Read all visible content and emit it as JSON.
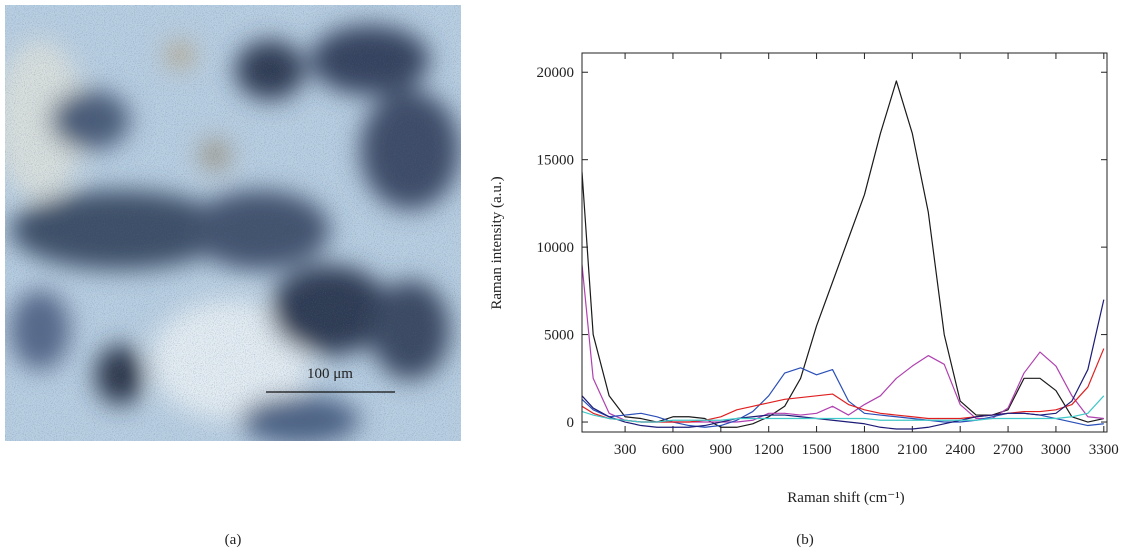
{
  "chart_data": {
    "type": "line",
    "xlabel": "Raman shift (cm⁻¹)",
    "ylabel": "Raman intensity (a.u.)",
    "x": [
      30,
      100,
      200,
      300,
      400,
      500,
      600,
      700,
      800,
      900,
      1000,
      1100,
      1200,
      1300,
      1400,
      1500,
      1600,
      1700,
      1800,
      1900,
      2000,
      2100,
      2200,
      2300,
      2400,
      2500,
      2600,
      2700,
      2800,
      2900,
      3000,
      3100,
      3200,
      3300
    ],
    "series": [
      {
        "color": "#1a1a1a",
        "values": [
          14300,
          5000,
          1500,
          300,
          200,
          0,
          300,
          300,
          200,
          -300,
          -300,
          -100,
          300,
          900,
          2500,
          5500,
          8000,
          10500,
          13000,
          16500,
          19500,
          16500,
          12000,
          5000,
          1200,
          400,
          400,
          700,
          2500,
          2500,
          1800,
          300,
          0,
          200
        ]
      },
      {
        "color": "#b040b0",
        "values": [
          9000,
          2500,
          500,
          100,
          0,
          0,
          0,
          0,
          0,
          0,
          0,
          100,
          500,
          500,
          400,
          500,
          900,
          400,
          1000,
          1500,
          2500,
          3200,
          3800,
          3300,
          1000,
          200,
          200,
          800,
          2800,
          4000,
          3200,
          1500,
          300,
          200
        ]
      },
      {
        "color": "#2a4fb8",
        "values": [
          1300,
          700,
          300,
          400,
          500,
          300,
          0,
          -200,
          -300,
          -200,
          100,
          600,
          1500,
          2800,
          3100,
          2700,
          3000,
          1200,
          500,
          400,
          300,
          200,
          100,
          0,
          0,
          100,
          300,
          500,
          500,
          400,
          200,
          0,
          -200,
          -100
        ]
      },
      {
        "color": "#e02020",
        "values": [
          900,
          500,
          200,
          100,
          0,
          0,
          0,
          0,
          100,
          300,
          700,
          900,
          1100,
          1300,
          1400,
          1500,
          1600,
          1000,
          700,
          500,
          400,
          300,
          200,
          200,
          200,
          300,
          400,
          500,
          600,
          600,
          700,
          1000,
          2000,
          4200
        ]
      },
      {
        "color": "#1c1c78",
        "values": [
          1500,
          800,
          300,
          0,
          -200,
          -300,
          -300,
          -300,
          -200,
          0,
          200,
          300,
          400,
          400,
          300,
          200,
          100,
          0,
          -100,
          -300,
          -400,
          -400,
          -300,
          -100,
          100,
          300,
          400,
          500,
          500,
          400,
          500,
          1200,
          3000,
          7000
        ]
      },
      {
        "color": "#40c8c8",
        "values": [
          600,
          400,
          200,
          100,
          0,
          0,
          100,
          100,
          100,
          100,
          200,
          200,
          200,
          200,
          200,
          200,
          200,
          200,
          200,
          100,
          100,
          100,
          100,
          100,
          100,
          100,
          200,
          200,
          200,
          200,
          200,
          300,
          500,
          1500
        ]
      }
    ],
    "xlim": [
      30,
      3320
    ],
    "ylim": [
      -570,
      21100
    ],
    "xticks": [
      300,
      600,
      900,
      1200,
      1500,
      1800,
      2100,
      2400,
      2700,
      3000,
      3300
    ],
    "yticks": [
      0,
      5000,
      10000,
      15000,
      20000
    ]
  },
  "image_panel": {
    "scale_label": "100 μm"
  },
  "captions": [
    "(a)",
    "(b)"
  ]
}
